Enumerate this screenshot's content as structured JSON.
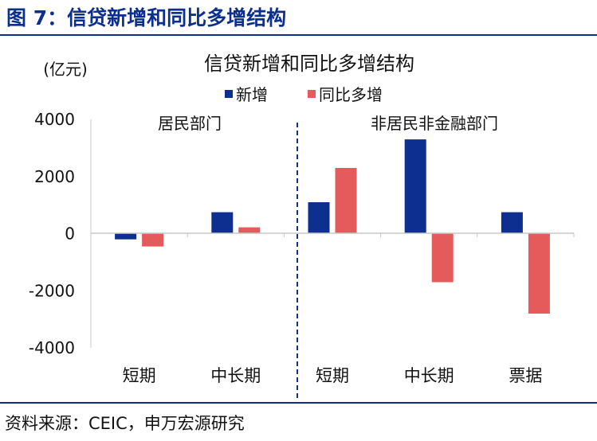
{
  "figure_title": "图 7：信贷新增和同比多增结构",
  "source": "资料来源：CEIC，申万宏源研究",
  "colors": {
    "title_blue": "#0b2f8f",
    "series_new": "#0d2f8f",
    "series_yoy": "#e55b5b"
  },
  "chart_data": {
    "type": "bar",
    "title": "信贷新增和同比多增结构",
    "unit_label": "(亿元)",
    "categories": [
      "短期",
      "中长期",
      "短期",
      "中长期",
      "票据"
    ],
    "groups": [
      {
        "label": "居民部门",
        "categories": [
          "短期",
          "中长期"
        ]
      },
      {
        "label": "非居民非金融部门",
        "categories": [
          "短期",
          "中长期",
          "票据"
        ]
      }
    ],
    "series": [
      {
        "name": "新增",
        "values": [
          -200,
          750,
          1100,
          3300,
          750
        ]
      },
      {
        "name": "同比多增",
        "values": [
          -450,
          220,
          2300,
          -1700,
          -2800
        ]
      }
    ],
    "ylim": [
      -4000,
      4000
    ],
    "yticks": [
      "4000",
      "2000",
      "0",
      "-2000",
      "-4000"
    ],
    "legend_position": "top",
    "grid": false
  }
}
